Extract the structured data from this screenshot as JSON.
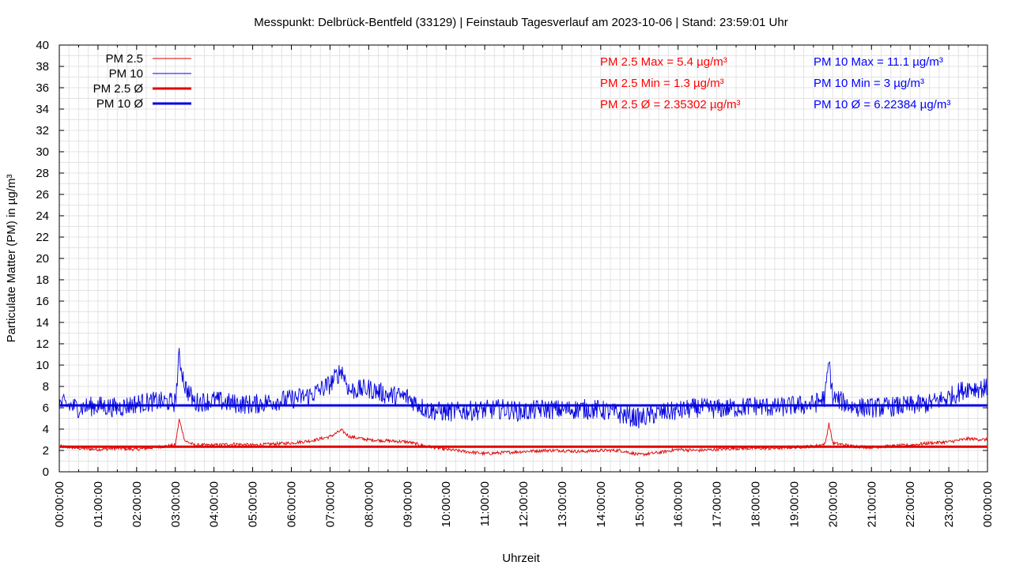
{
  "chart_data": {
    "type": "line",
    "title": "Messpunkt: Delbrück-Bentfeld (33129) | Feinstaub Tagesverlauf am 2023-10-06 | Stand: 23:59:01 Uhr",
    "xlabel": "Uhrzeit",
    "ylabel": "Particulate Matter (PM) in µg/m³",
    "ylim": [
      0,
      40
    ],
    "xlim": [
      "00:00:00",
      "24:00:00"
    ],
    "grid": true,
    "legend_position": "top-left",
    "y_ticks": [
      "0",
      "2",
      "4",
      "6",
      "8",
      "10",
      "12",
      "14",
      "16",
      "18",
      "20",
      "22",
      "24",
      "26",
      "28",
      "30",
      "32",
      "34",
      "36",
      "38",
      "40"
    ],
    "x_ticks": [
      "00:00:00",
      "01:00:00",
      "02:00:00",
      "03:00:00",
      "04:00:00",
      "05:00:00",
      "06:00:00",
      "07:00:00",
      "08:00:00",
      "09:00:00",
      "10:00:00",
      "11:00:00",
      "12:00:00",
      "13:00:00",
      "14:00:00",
      "15:00:00",
      "16:00:00",
      "17:00:00",
      "18:00:00",
      "19:00:00",
      "20:00:00",
      "21:00:00",
      "22:00:00",
      "23:00:00",
      "00:00:00"
    ],
    "x_hours": [
      0.0,
      0.5,
      1.0,
      1.5,
      2.0,
      2.5,
      3.0,
      3.1,
      3.25,
      3.5,
      4.0,
      4.5,
      5.0,
      5.5,
      6.0,
      6.5,
      7.0,
      7.3,
      7.5,
      8.0,
      8.5,
      9.0,
      9.5,
      10.0,
      10.5,
      11.0,
      11.5,
      12.0,
      12.5,
      13.0,
      13.5,
      14.0,
      14.5,
      15.0,
      15.5,
      16.0,
      16.5,
      17.0,
      17.5,
      18.0,
      18.5,
      19.0,
      19.5,
      19.8,
      19.9,
      20.0,
      20.5,
      21.0,
      21.5,
      22.0,
      22.5,
      23.0,
      23.5,
      24.0
    ],
    "series": [
      {
        "name": "PM 2.5",
        "color": "#e00000",
        "style": "thin",
        "values": [
          2.4,
          2.2,
          2.1,
          2.2,
          2.1,
          2.3,
          2.5,
          4.9,
          2.9,
          2.5,
          2.5,
          2.6,
          2.5,
          2.6,
          2.7,
          2.9,
          3.3,
          3.9,
          3.3,
          3.0,
          2.9,
          2.8,
          2.4,
          2.1,
          1.9,
          1.7,
          1.8,
          1.9,
          2.0,
          2.0,
          1.9,
          2.0,
          2.0,
          1.6,
          1.8,
          2.1,
          2.0,
          2.1,
          2.2,
          2.2,
          2.2,
          2.3,
          2.4,
          2.6,
          4.5,
          2.7,
          2.4,
          2.3,
          2.4,
          2.5,
          2.7,
          2.8,
          3.1,
          3.0
        ]
      },
      {
        "name": "PM 10",
        "color": "#0000e0",
        "style": "thin",
        "values": [
          6.4,
          6.0,
          6.2,
          6.0,
          6.4,
          6.6,
          6.5,
          10.8,
          8.0,
          6.5,
          6.7,
          6.4,
          6.3,
          6.6,
          6.8,
          7.2,
          8.2,
          9.6,
          7.6,
          7.8,
          7.2,
          7.0,
          5.8,
          5.6,
          5.7,
          5.8,
          5.9,
          5.6,
          5.9,
          5.8,
          5.9,
          5.8,
          5.4,
          5.0,
          5.5,
          5.7,
          6.0,
          5.9,
          6.0,
          6.2,
          6.0,
          6.2,
          6.3,
          7.0,
          10.3,
          7.0,
          6.1,
          6.0,
          6.1,
          6.2,
          6.4,
          7.0,
          7.9,
          7.8
        ]
      },
      {
        "name": "PM 2.5 Ø",
        "color": "#e00000",
        "style": "thick",
        "mean": 2.35302
      },
      {
        "name": "PM 10 Ø",
        "color": "#0000e0",
        "style": "thick",
        "mean": 6.22384
      }
    ],
    "annotations": {
      "pm25": [
        "PM 2.5 Max = 5.4 µg/m³",
        "PM 2.5 Min = 1.3 µg/m³",
        "PM 2.5 Ø = 2.35302 µg/m³"
      ],
      "pm10": [
        "PM 10 Max = 11.1 µg/m³",
        "PM 10 Min = 3 µg/m³",
        "PM 10 Ø = 6.22384 µg/m³"
      ]
    }
  }
}
